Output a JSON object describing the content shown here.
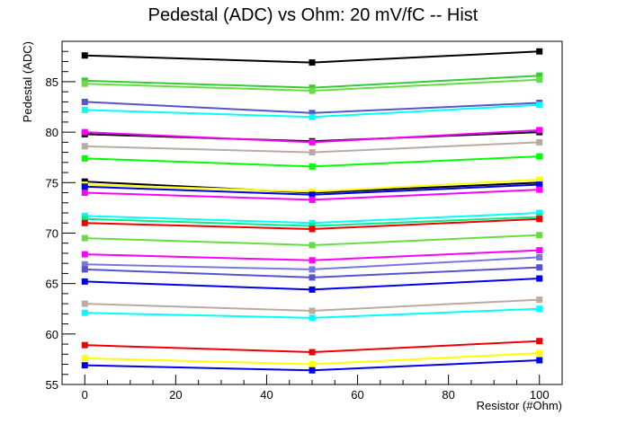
{
  "chart_data": {
    "type": "line",
    "title": "Pedestal (ADC) vs Ohm: 20 mV/fC -- Hist",
    "xlabel": "Resistor (#Ohm)",
    "ylabel": "Pedestal (ADC)",
    "xlim": [
      -5,
      105
    ],
    "ylim": [
      55,
      89
    ],
    "xticks": [
      0,
      20,
      40,
      60,
      80,
      100
    ],
    "yticks": [
      55,
      60,
      65,
      70,
      75,
      80,
      85
    ],
    "grid": false,
    "legend": "none",
    "x": [
      0,
      50,
      100
    ],
    "series": [
      {
        "color": "#000000",
        "values": [
          87.6,
          86.9,
          88.0
        ]
      },
      {
        "color": "#33cc33",
        "values": [
          85.1,
          84.4,
          85.6
        ]
      },
      {
        "color": "#66dd44",
        "values": [
          84.8,
          84.1,
          85.2
        ]
      },
      {
        "color": "#5555cc",
        "values": [
          83.0,
          81.9,
          82.9
        ]
      },
      {
        "color": "#00ffff",
        "values": [
          82.2,
          81.5,
          82.7
        ]
      },
      {
        "color": "#000000",
        "values": [
          79.8,
          79.1,
          80.0
        ]
      },
      {
        "color": "#ff00ff",
        "values": [
          80.0,
          79.0,
          80.2
        ]
      },
      {
        "color": "#bbaaa0",
        "values": [
          78.6,
          78.0,
          79.0
        ]
      },
      {
        "color": "#00ff00",
        "values": [
          77.4,
          76.6,
          77.6
        ]
      },
      {
        "color": "#000000",
        "values": [
          75.1,
          74.0,
          75.0
        ]
      },
      {
        "color": "#ffff00",
        "values": [
          74.8,
          74.1,
          75.3
        ]
      },
      {
        "color": "#0000ee",
        "values": [
          74.6,
          73.8,
          74.8
        ]
      },
      {
        "color": "#ff00ff",
        "values": [
          74.0,
          73.3,
          74.3
        ]
      },
      {
        "color": "#00ffff",
        "values": [
          71.7,
          71.0,
          72.0
        ]
      },
      {
        "color": "#00ee88",
        "values": [
          71.4,
          70.7,
          71.6
        ]
      },
      {
        "color": "#ee0000",
        "values": [
          71.0,
          70.4,
          71.4
        ]
      },
      {
        "color": "#66dd44",
        "values": [
          69.5,
          68.8,
          69.8
        ]
      },
      {
        "color": "#ff00ff",
        "values": [
          67.9,
          67.3,
          68.3
        ]
      },
      {
        "color": "#7777dd",
        "values": [
          66.9,
          66.4,
          67.6
        ]
      },
      {
        "color": "#5555cc",
        "values": [
          66.4,
          65.6,
          66.6
        ]
      },
      {
        "color": "#0000ee",
        "values": [
          65.2,
          64.4,
          65.5
        ]
      },
      {
        "color": "#bbaaa0",
        "values": [
          63.0,
          62.3,
          63.4
        ]
      },
      {
        "color": "#00ffff",
        "values": [
          62.1,
          61.6,
          62.5
        ]
      },
      {
        "color": "#ee0000",
        "values": [
          58.9,
          58.2,
          59.3
        ]
      },
      {
        "color": "#ffff00",
        "values": [
          57.6,
          57.0,
          58.1
        ]
      },
      {
        "color": "#0000ee",
        "values": [
          56.9,
          56.4,
          57.4
        ]
      }
    ]
  }
}
